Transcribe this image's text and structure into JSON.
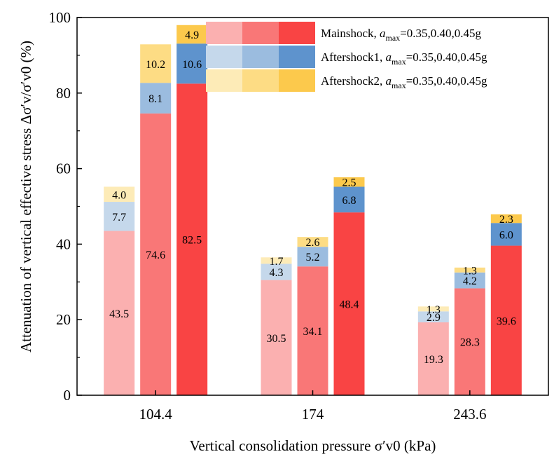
{
  "chart_data": {
    "type": "bar",
    "stacked": true,
    "categories": [
      "104.4",
      "174",
      "243.6"
    ],
    "amax_levels": [
      "0.35",
      "0.40",
      "0.45"
    ],
    "xlabel": "Vertical consolidation pressure σ′v0 (kPa)",
    "ylabel": "Attenuation of vertical effective stress Δσ′v/σ′v0 (%)",
    "ylim": [
      0,
      100
    ],
    "yticks": [
      0,
      20,
      40,
      60,
      80,
      100
    ],
    "legend_position": "top-right",
    "series": [
      {
        "name": "Mainshock",
        "legend_text": "Mainshock, amax=0.35,0.40,0.45g",
        "colors": [
          "#fbb0b0",
          "#f97777",
          "#f94444"
        ],
        "values": [
          [
            43.5,
            74.6,
            82.5
          ],
          [
            30.5,
            34.1,
            48.4
          ],
          [
            19.3,
            28.3,
            39.6
          ]
        ],
        "labels": [
          [
            "43.5",
            "74.6",
            "82.5"
          ],
          [
            "30.5",
            "34.1",
            "48.4"
          ],
          [
            "19.3",
            "28.3",
            "39.6"
          ]
        ]
      },
      {
        "name": "Aftershock1",
        "legend_text": "Aftershock1, amax=0.35,0.40,0.45g",
        "colors": [
          "#c5d8eb",
          "#9bbcdf",
          "#5e93cd"
        ],
        "values": [
          [
            7.7,
            8.1,
            10.6
          ],
          [
            4.3,
            5.2,
            6.8
          ],
          [
            2.9,
            4.2,
            6.0
          ]
        ],
        "labels": [
          [
            "7.7",
            "8.1",
            "10.6"
          ],
          [
            "4.3",
            "5.2",
            "6.8"
          ],
          [
            "2.9",
            "4.2",
            "6.0"
          ]
        ]
      },
      {
        "name": "Aftershock2",
        "legend_text": "Aftershock2, amax=0.35,0.40,0.45g",
        "colors": [
          "#fdebb7",
          "#fddc84",
          "#fcc94c"
        ],
        "values": [
          [
            4.0,
            10.2,
            4.9
          ],
          [
            1.7,
            2.6,
            2.5
          ],
          [
            1.3,
            1.3,
            2.3
          ]
        ],
        "labels": [
          [
            "4.0",
            "10.2",
            "4.9"
          ],
          [
            "1.7",
            "2.6",
            "2.5"
          ],
          [
            "1.3",
            "1.3",
            "2.3"
          ]
        ]
      }
    ]
  }
}
